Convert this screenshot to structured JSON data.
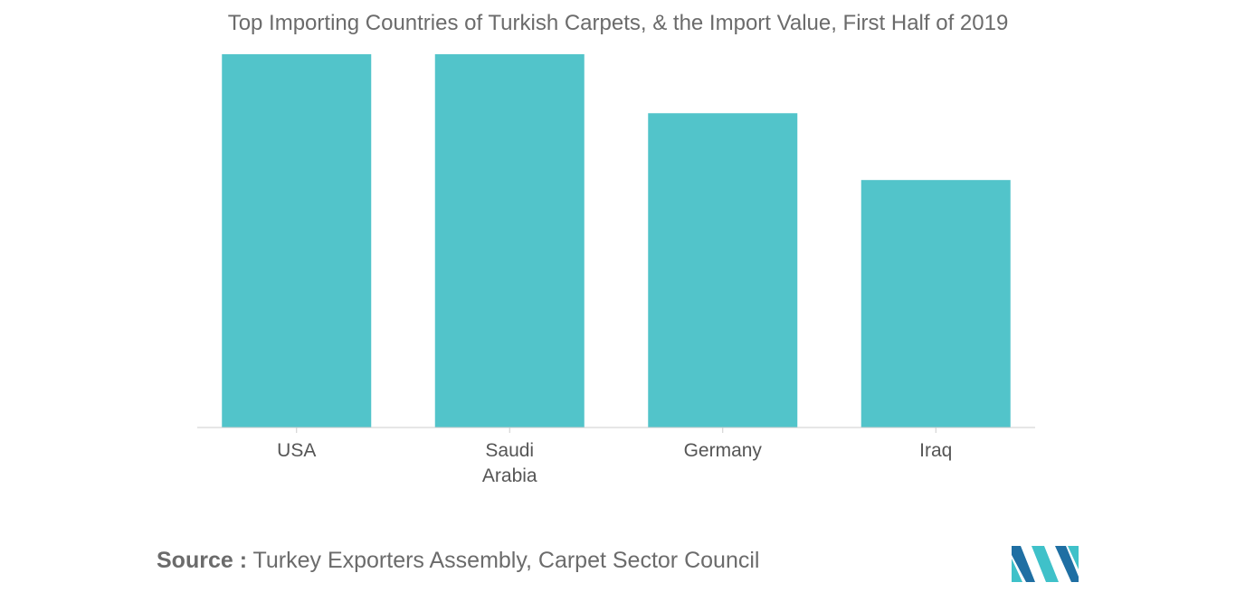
{
  "chart_data": {
    "type": "bar",
    "title": "Top Importing Countries of Turkish Carpets, & the Import Value, First Half of 2019",
    "categories": [
      "USA",
      "Saudi\nArabia",
      "Germany",
      "Iraq"
    ],
    "values": [
      100,
      100,
      84.2,
      66.3
    ],
    "xlabel": "",
    "ylabel": "",
    "ylim": [
      0,
      100
    ],
    "grid": false,
    "legend": "none",
    "bar_color": "#52c4ca",
    "axis_color": "#cccccc",
    "text_color": "#555555"
  },
  "source": {
    "label": "Source :",
    "text": " Turkey Exporters Assembly, Carpet Sector Council"
  },
  "logo": {
    "icon": "mordor-intelligence-logo-icon",
    "colors": [
      "#1f6fa3",
      "#3fc1c9"
    ]
  }
}
